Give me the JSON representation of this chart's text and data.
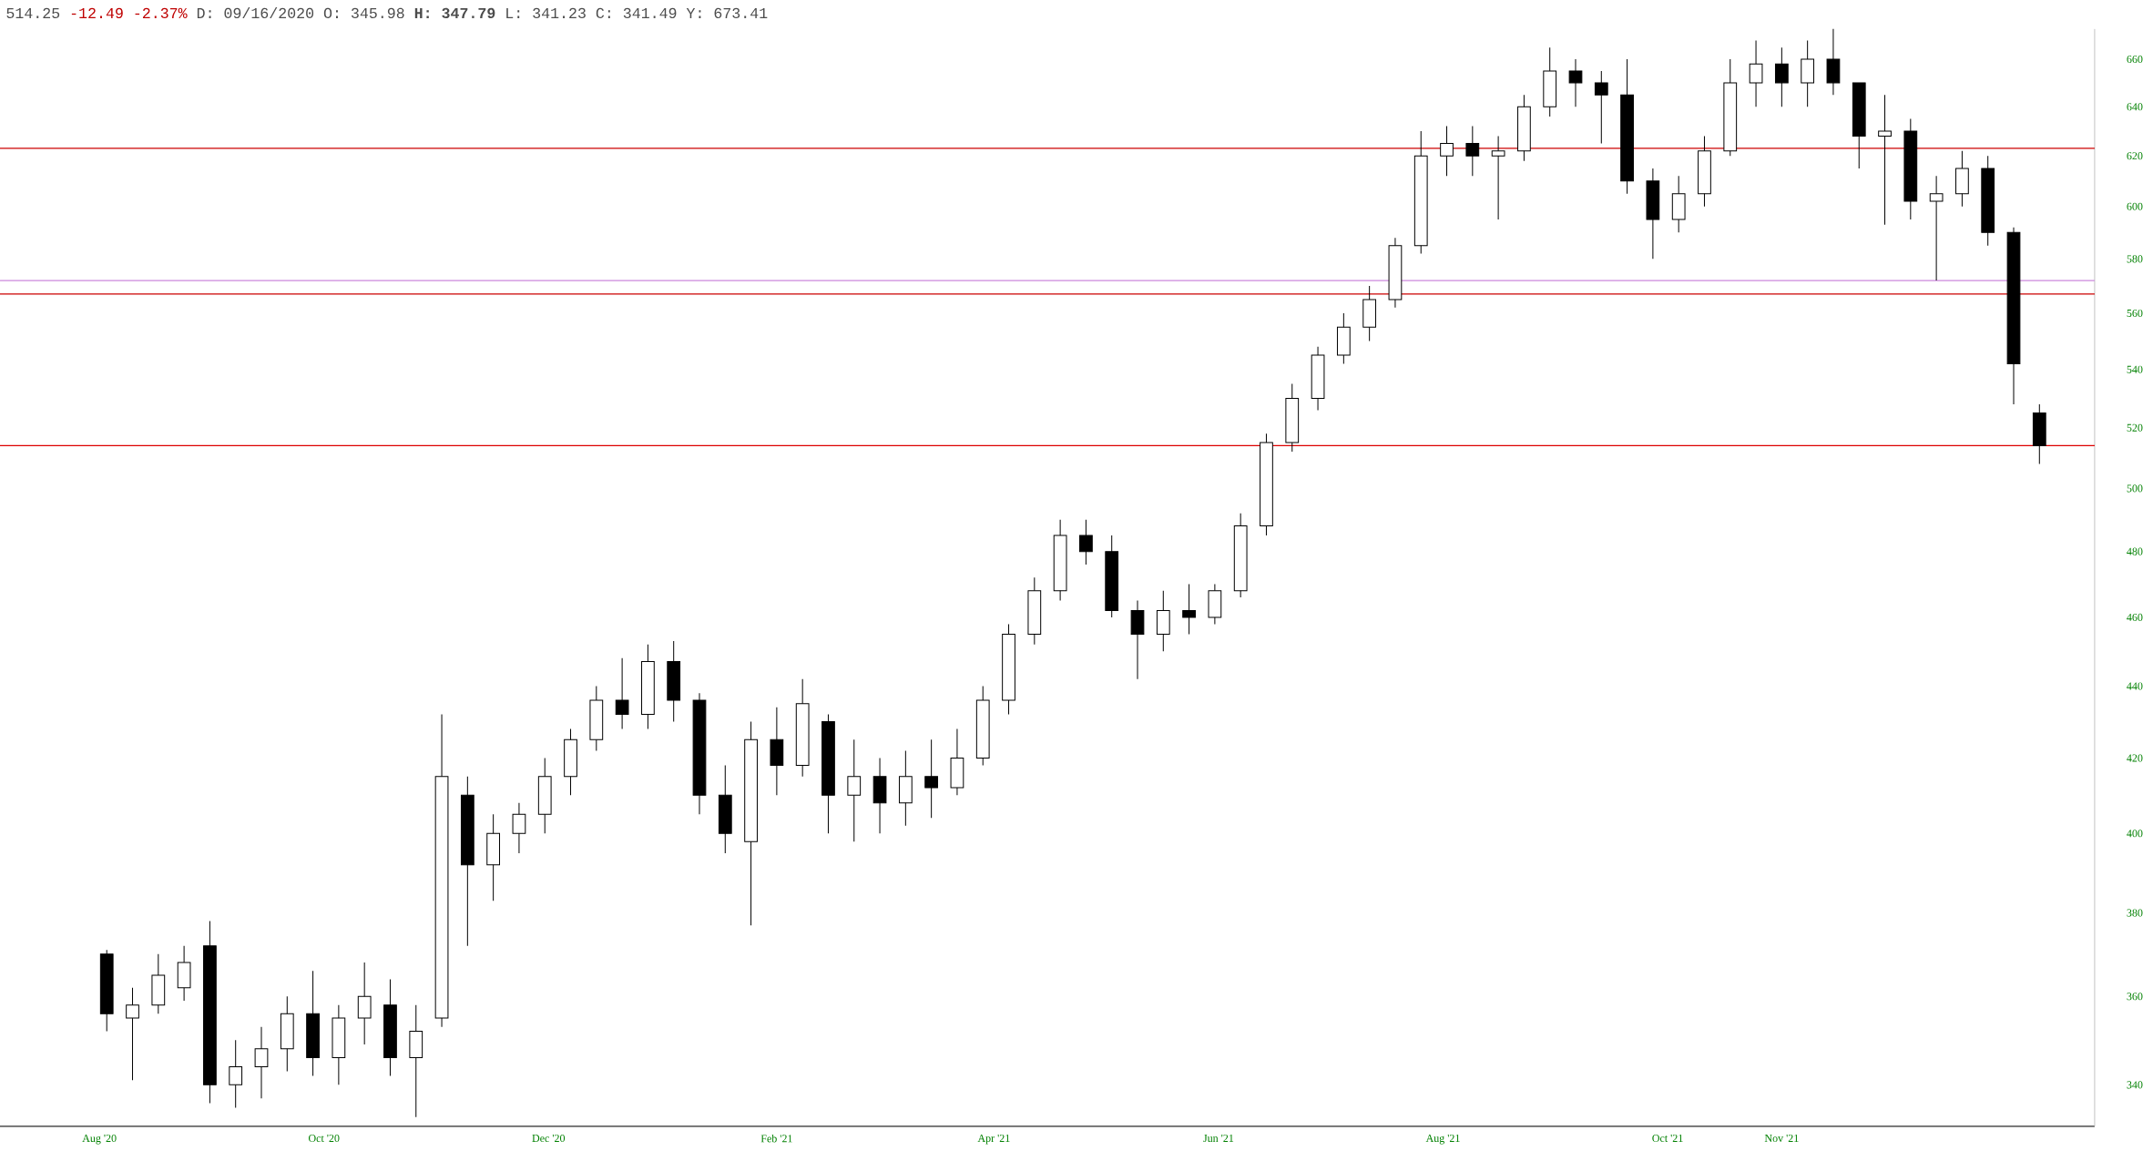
{
  "chart_data": {
    "type": "candlestick",
    "annotations": [
      "514.25",
      "-12.49 -2.37%",
      "D: 09/16/2020 O: 345.98 **H: 347.79** L: 341.23 C: 341.49 Y: 673.41"
    ],
    "color": "#000000",
    "log": true,
    "x": [
      "2020-08-03",
      "2020-08-10",
      "2020-08-17",
      "2020-08-24",
      "2020-08-31",
      "2020-09-07",
      "2020-09-14",
      "2020-09-21",
      "2020-09-28",
      "2020-10-05",
      "2020-10-12",
      "2020-10-19",
      "2020-10-26",
      "2020-11-02",
      "2020-11-09",
      "2020-11-16",
      "2020-11-23",
      "2020-11-30",
      "2020-12-07",
      "2020-12-14",
      "2020-12-21",
      "2020-12-28",
      "2021-01-04",
      "2021-01-11",
      "2021-01-18",
      "2021-01-25",
      "2021-02-01",
      "2021-02-08",
      "2021-02-15",
      "2021-02-22",
      "2021-03-01",
      "2021-03-08",
      "2021-03-15",
      "2021-03-22",
      "2021-03-29",
      "2021-04-05",
      "2021-04-12",
      "2021-04-19",
      "2021-04-26",
      "2021-05-03",
      "2021-05-10",
      "2021-05-17",
      "2021-05-24",
      "2021-05-31",
      "2021-06-07",
      "2021-06-14",
      "2021-06-21",
      "2021-06-28",
      "2021-07-05",
      "2021-07-12",
      "2021-07-19",
      "2021-07-26",
      "2021-08-02",
      "2021-08-09",
      "2021-08-16",
      "2021-08-23",
      "2021-08-30",
      "2021-09-06",
      "2021-09-13",
      "2021-09-20",
      "2021-09-27",
      "2021-10-04",
      "2021-10-11",
      "2021-10-18",
      "2021-10-25",
      "2021-11-01",
      "2021-11-08",
      "2021-11-15",
      "2021-11-22",
      "2021-11-29",
      "2021-12-06",
      "2021-12-13",
      "2021-12-20",
      "2021-12-27",
      "2022-01-03",
      "2022-01-10"
    ],
    "ohlc": [
      [
        370,
        371,
        352,
        356
      ],
      [
        355,
        362,
        341,
        358
      ],
      [
        358,
        370,
        356,
        365
      ],
      [
        362,
        372,
        359,
        368
      ],
      [
        372,
        378,
        336,
        340
      ],
      [
        340,
        350,
        335,
        344
      ],
      [
        344,
        353,
        337,
        348
      ],
      [
        348,
        360,
        343,
        356
      ],
      [
        356,
        366,
        342,
        346
      ],
      [
        346,
        358,
        340,
        355
      ],
      [
        355,
        368,
        349,
        360
      ],
      [
        358,
        364,
        342,
        346
      ],
      [
        346,
        358,
        333,
        352
      ],
      [
        355,
        432,
        353,
        415
      ],
      [
        410,
        415,
        372,
        392
      ],
      [
        392,
        405,
        383,
        400
      ],
      [
        400,
        408,
        395,
        405
      ],
      [
        405,
        420,
        400,
        415
      ],
      [
        415,
        428,
        410,
        425
      ],
      [
        425,
        440,
        422,
        436
      ],
      [
        436,
        448,
        428,
        432
      ],
      [
        432,
        452,
        428,
        447
      ],
      [
        447,
        453,
        430,
        436
      ],
      [
        436,
        438,
        405,
        410
      ],
      [
        410,
        418,
        395,
        400
      ],
      [
        398,
        430,
        377,
        425
      ],
      [
        425,
        434,
        410,
        418
      ],
      [
        418,
        442,
        415,
        435
      ],
      [
        430,
        432,
        400,
        410
      ],
      [
        410,
        425,
        398,
        415
      ],
      [
        415,
        420,
        400,
        408
      ],
      [
        408,
        422,
        402,
        415
      ],
      [
        415,
        425,
        404,
        412
      ],
      [
        412,
        428,
        410,
        420
      ],
      [
        420,
        440,
        418,
        436
      ],
      [
        436,
        458,
        432,
        455
      ],
      [
        455,
        472,
        452,
        468
      ],
      [
        468,
        490,
        465,
        485
      ],
      [
        485,
        490,
        476,
        480
      ],
      [
        480,
        485,
        460,
        462
      ],
      [
        462,
        465,
        442,
        455
      ],
      [
        455,
        468,
        450,
        462
      ],
      [
        462,
        470,
        455,
        460
      ],
      [
        460,
        470,
        458,
        468
      ],
      [
        468,
        492,
        466,
        488
      ],
      [
        488,
        518,
        485,
        515
      ],
      [
        515,
        535,
        512,
        530
      ],
      [
        530,
        548,
        526,
        545
      ],
      [
        545,
        560,
        542,
        555
      ],
      [
        555,
        570,
        550,
        565
      ],
      [
        565,
        588,
        562,
        585
      ],
      [
        585,
        630,
        582,
        620
      ],
      [
        620,
        632,
        612,
        625
      ],
      [
        625,
        632,
        612,
        620
      ],
      [
        620,
        628,
        595,
        622
      ],
      [
        622,
        645,
        618,
        640
      ],
      [
        640,
        665,
        636,
        655
      ],
      [
        655,
        660,
        640,
        650
      ],
      [
        650,
        655,
        625,
        645
      ],
      [
        645,
        660,
        605,
        610
      ],
      [
        610,
        615,
        580,
        595
      ],
      [
        595,
        612,
        590,
        605
      ],
      [
        605,
        628,
        600,
        622
      ],
      [
        622,
        660,
        620,
        650
      ],
      [
        650,
        668,
        640,
        658
      ],
      [
        658,
        665,
        640,
        650
      ],
      [
        650,
        668,
        640,
        660
      ],
      [
        660,
        673,
        645,
        650
      ],
      [
        650,
        650,
        615,
        628
      ],
      [
        628,
        645,
        593,
        630
      ],
      [
        630,
        635,
        595,
        602
      ],
      [
        602,
        612,
        572,
        605
      ],
      [
        605,
        622,
        600,
        615
      ],
      [
        615,
        620,
        585,
        590
      ],
      [
        590,
        592,
        528,
        542
      ],
      [
        525,
        528,
        508,
        514
      ]
    ],
    "xlim": [
      "2020-07-05",
      "2022-01-25"
    ],
    "xticks": [
      {
        "value": "2020-08-01",
        "label": "Aug '20"
      },
      {
        "value": "2020-10-01",
        "label": "Oct '20"
      },
      {
        "value": "2020-12-01",
        "label": "Dec '20"
      },
      {
        "value": "2021-02-01",
        "label": "Feb '21"
      },
      {
        "value": "2021-04-01",
        "label": "Apr '21"
      },
      {
        "value": "2021-06-01",
        "label": "Jun '21"
      },
      {
        "value": "2021-08-01",
        "label": "Aug '21"
      },
      {
        "value": "2021-10-01",
        "label": "Oct '21"
      },
      {
        "value": "2021-11-01",
        "label": "Nov '21"
      }
    ],
    "ylim": [
      331,
      673
    ],
    "yticks": [
      340,
      360,
      380,
      400,
      420,
      440,
      460,
      480,
      500,
      520,
      540,
      560,
      580,
      600,
      620,
      640,
      660
    ],
    "ref_lines": [
      {
        "axis": "y",
        "value": 623,
        "color": "#cc0000"
      },
      {
        "axis": "y",
        "value": 572,
        "color": "#cc88dd"
      },
      {
        "axis": "y",
        "value": 567,
        "color": "#cc0000"
      },
      {
        "axis": "y",
        "value": 514,
        "color": "#dd0000"
      }
    ]
  }
}
